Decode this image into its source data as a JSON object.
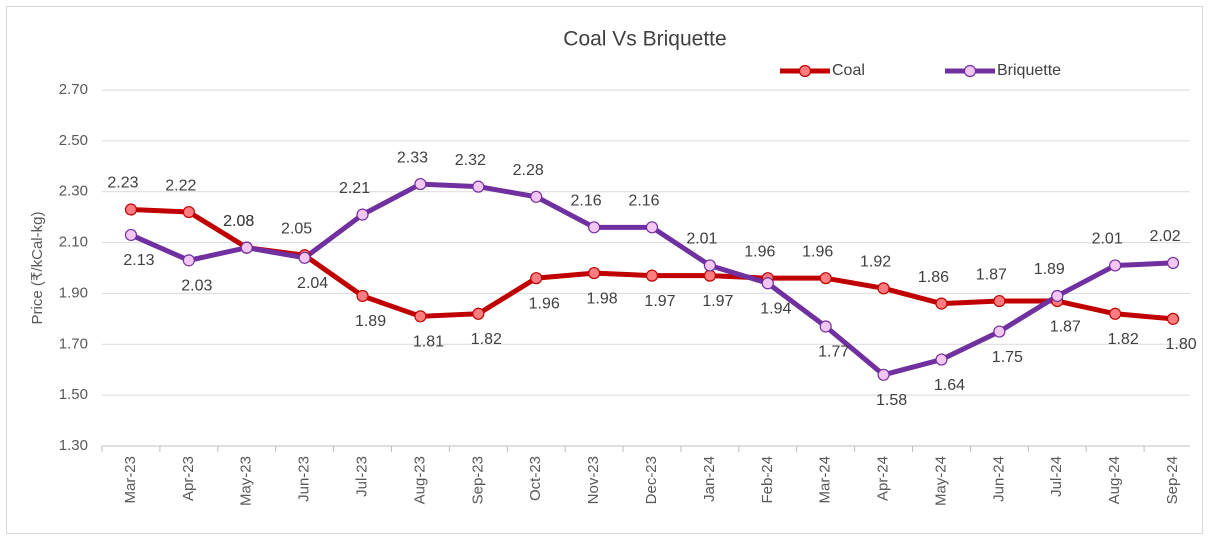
{
  "chart_data": {
    "type": "line",
    "title": "Coal Vs Briquette",
    "y_label": "Price (₹/kCal-kg)",
    "categories": [
      "Mar-23",
      "Apr-23",
      "May-23",
      "Jun-23",
      "Jul-23",
      "Aug-23",
      "Sep-23",
      "Oct-23",
      "Nov-23",
      "Dec-23",
      "Jan-24",
      "Feb-24",
      "Mar-24",
      "Apr-24",
      "May-24",
      "Jun-24",
      "Jul-24",
      "Aug-24",
      "Sep-24"
    ],
    "series": [
      {
        "name": "Coal",
        "color": "#c00000",
        "marker_fill": "#ff7c80",
        "values": [
          2.23,
          2.22,
          2.08,
          2.05,
          1.89,
          1.81,
          1.82,
          1.96,
          1.98,
          1.97,
          1.97,
          1.96,
          1.96,
          1.92,
          1.86,
          1.87,
          1.87,
          1.82,
          1.8
        ],
        "value_labels": [
          "2.23",
          "2.22",
          "2.08",
          "2.05",
          "1.89",
          "1.81",
          "1.82",
          "1.96",
          "1.98",
          "1.97",
          "1.97",
          "1.96",
          "1.96",
          "1.92",
          "1.86",
          "1.87",
          "1.87",
          "1.82",
          "1.80"
        ]
      },
      {
        "name": "Briquette",
        "color": "#7030a0",
        "marker_fill": "#f4c6f4",
        "values": [
          2.13,
          2.03,
          2.08,
          2.04,
          2.21,
          2.33,
          2.32,
          2.28,
          2.16,
          2.16,
          2.01,
          1.94,
          1.77,
          1.58,
          1.64,
          1.75,
          1.89,
          2.01,
          2.02
        ]
      }
    ],
    "ylim": [
      1.3,
      2.7
    ],
    "yticks": [
      {
        "value": 1.3,
        "label": "1.30"
      },
      {
        "value": 1.5,
        "label": "1.50"
      },
      {
        "value": 1.7,
        "label": "1.70"
      },
      {
        "value": 1.9,
        "label": "1.90"
      },
      {
        "value": 2.1,
        "label": "2.10"
      },
      {
        "value": 2.3,
        "label": "2.30"
      },
      {
        "value": 2.5,
        "label": "2.50"
      },
      {
        "value": 2.7,
        "label": "2.70"
      }
    ],
    "grid": true,
    "legend": "top-right"
  }
}
